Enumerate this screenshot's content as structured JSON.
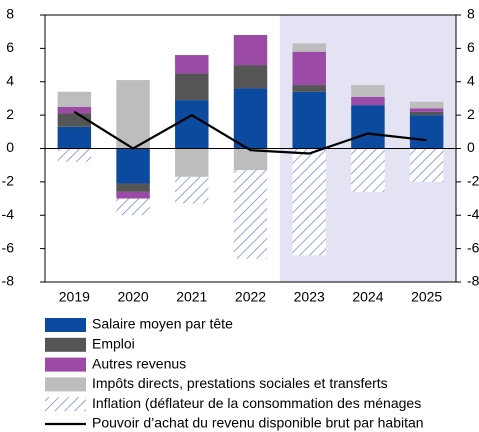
{
  "chart_data": {
    "type": "bar",
    "stacked": true,
    "categories": [
      "2019",
      "2020",
      "2021",
      "2022",
      "2023",
      "2024",
      "2025"
    ],
    "ylim": [
      -8,
      8
    ],
    "yticks": [
      -8,
      -6,
      -4,
      -2,
      0,
      2,
      4,
      6,
      8
    ],
    "series": [
      {
        "name": "Salaire moyen par tête",
        "color": "#0b4a9e",
        "values": [
          1.3,
          -2.1,
          2.9,
          3.6,
          3.4,
          2.6,
          2.0
        ]
      },
      {
        "name": "Emploi",
        "color": "#555555",
        "values": [
          0.8,
          -0.5,
          1.6,
          1.4,
          0.4,
          0,
          0.2
        ]
      },
      {
        "name": "Autres revenus",
        "color": "#9b4aa6",
        "values": [
          0.4,
          -0.4,
          1.1,
          1.8,
          2.0,
          0.5,
          0.2
        ]
      },
      {
        "name": "Impôts directs, prestations sociales et transferts",
        "color": "#bdbdbd",
        "values": [
          0.9,
          4.1,
          -1.7,
          -1.3,
          0.5,
          0.7,
          0.4
        ]
      },
      {
        "name": "Inflation (déflateur de la consommation des ménages",
        "color": "#7486d0",
        "pattern": "hatch",
        "values": [
          -0.8,
          -1.0,
          -1.6,
          -5.3,
          -6.4,
          -2.6,
          -2.0
        ]
      },
      {
        "name": "Pouvoir d’achat du revenu disponible brut par habitan",
        "color": "#000000",
        "type": "line",
        "values": [
          2.2,
          0,
          2.0,
          -0.1,
          -0.3,
          0.9,
          0.5
        ]
      }
    ]
  }
}
